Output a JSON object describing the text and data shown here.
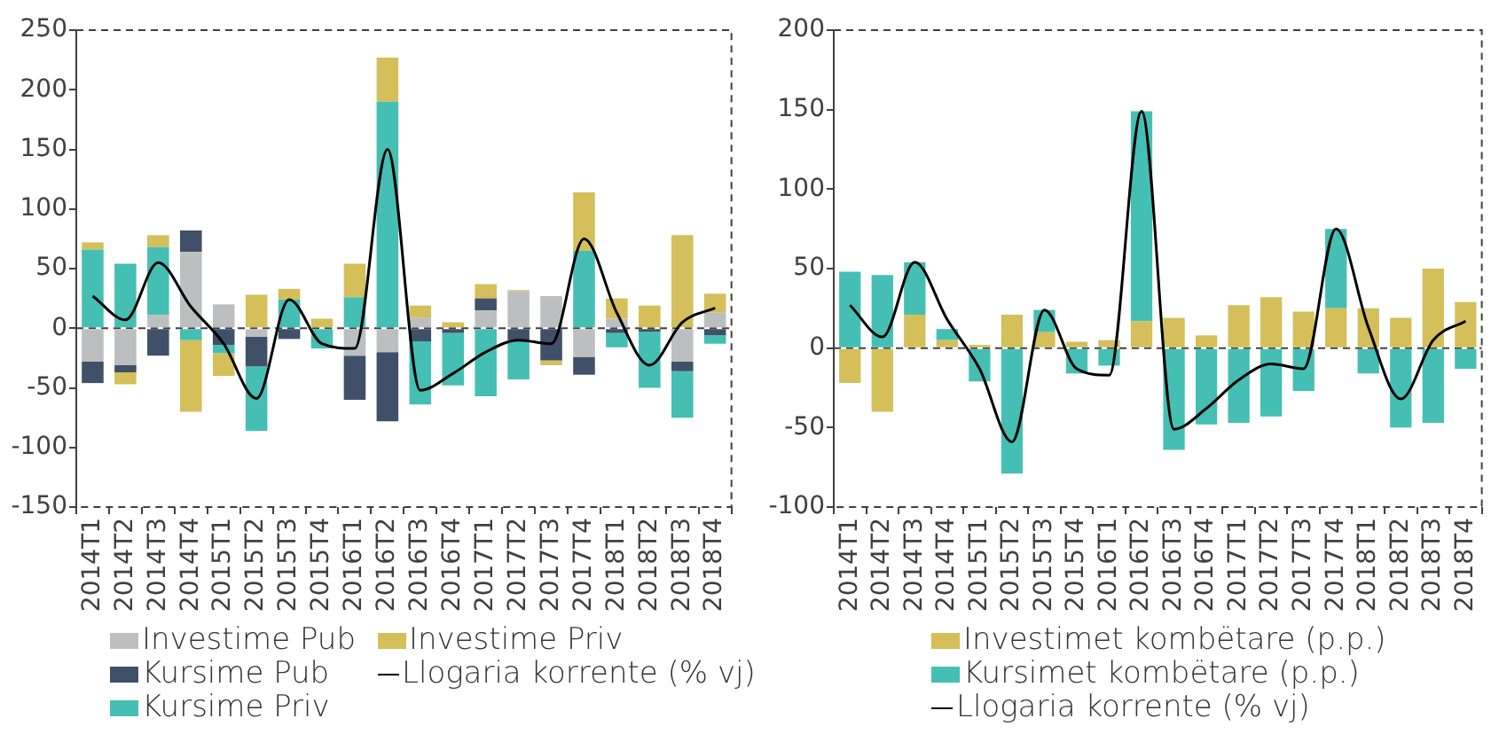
{
  "chart_data": [
    {
      "type": "bar",
      "stacked": true,
      "legend": "bottom",
      "grid": false,
      "categories": [
        "2014T1",
        "2014T2",
        "2014T3",
        "2014T4",
        "2015T1",
        "2015T2",
        "2015T3",
        "2015T4",
        "2016T1",
        "2016T2",
        "2016T3",
        "2016T4",
        "2017T1",
        "2017T2",
        "2017T3",
        "2017T4",
        "2018T1",
        "2018T2",
        "2018T3",
        "2018T4"
      ],
      "ylim": [
        -150,
        250
      ],
      "yticks": [
        -150,
        -100,
        -50,
        0,
        50,
        100,
        150,
        200,
        250
      ],
      "ref_lines": [
        {
          "axis": "y",
          "value": 0,
          "line_style": "dashed",
          "color": "#404040"
        }
      ],
      "series": [
        {
          "name": "Investime Pub",
          "color": "#bcbec0",
          "values": [
            -28,
            -31,
            11,
            64,
            20,
            -7,
            0,
            null,
            -23,
            -20,
            9,
            null,
            15,
            31,
            27,
            -24,
            8,
            0,
            -28,
            13
          ]
        },
        {
          "name": "Kursime Pub",
          "color": "#3f5068",
          "values": [
            -18,
            -6,
            -23,
            18,
            -14,
            -25,
            -9,
            0,
            -37,
            -58,
            -11,
            -4,
            10,
            -10,
            -27,
            -15,
            -4,
            -3,
            -8,
            -6
          ]
        },
        {
          "name": "Kursime Priv",
          "color": "#45bfb4",
          "values": [
            66,
            54,
            57,
            -10,
            -7,
            -54,
            24,
            -17,
            26,
            190,
            -53,
            -44,
            -57,
            -33,
            0,
            65,
            -12,
            -47,
            -39,
            -7
          ]
        },
        {
          "name": "Investime Priv",
          "color": "#d4bf5a",
          "values": [
            6,
            -10,
            10,
            -60,
            -19,
            28,
            9,
            8,
            28,
            37,
            10,
            5,
            12,
            1,
            -4,
            49,
            17,
            19,
            78,
            16
          ]
        },
        {
          "name": "Llogaria korrente (% vj)",
          "type": "line",
          "color": "#000000",
          "values": [
            27,
            7,
            55,
            18,
            -13,
            -59,
            24,
            -13,
            -17,
            150,
            -52,
            -38,
            -20,
            -10,
            -13,
            75,
            13,
            -31,
            5,
            17
          ]
        }
      ]
    },
    {
      "type": "bar",
      "stacked": true,
      "legend": "bottom",
      "grid": false,
      "categories": [
        "2014T1",
        "2014T2",
        "2014T3",
        "2014T4",
        "2015T1",
        "2015T2",
        "2015T3",
        "2015T4",
        "2016T1",
        "2016T2",
        "2016T3",
        "2016T4",
        "2017T1",
        "2017T2",
        "2017T3",
        "2017T4",
        "2018T1",
        "2018T2",
        "2018T3",
        "2018T4"
      ],
      "ylim": [
        -100,
        200
      ],
      "yticks": [
        -100,
        -50,
        0,
        50,
        100,
        150,
        200
      ],
      "ref_lines": [
        {
          "axis": "y",
          "value": 0,
          "line_style": "dashed",
          "color": "#404040"
        }
      ],
      "series": [
        {
          "name": "Investimet kombëtare (p.p.)",
          "color": "#d4bf5a",
          "values": [
            -22,
            -40,
            21,
            5,
            2,
            21,
            10,
            4,
            5,
            17,
            19,
            8,
            27,
            32,
            23,
            25,
            25,
            19,
            50,
            29
          ]
        },
        {
          "name": "Kursimet kombëtare (p.p.)",
          "color": "#45bfb4",
          "values": [
            48,
            46,
            33,
            7,
            -21,
            -79,
            14,
            -16,
            -11,
            132,
            -64,
            -48,
            -47,
            -43,
            -27,
            50,
            -16,
            -50,
            -47,
            -13
          ]
        },
        {
          "name": "Llogaria korrente (% vj)",
          "type": "line",
          "color": "#000000",
          "values": [
            27,
            7,
            54,
            18,
            -13,
            -59,
            24,
            -13,
            -17,
            149,
            -51,
            -38,
            -20,
            -10,
            -13,
            75,
            13,
            -32,
            5,
            17
          ]
        }
      ]
    }
  ]
}
